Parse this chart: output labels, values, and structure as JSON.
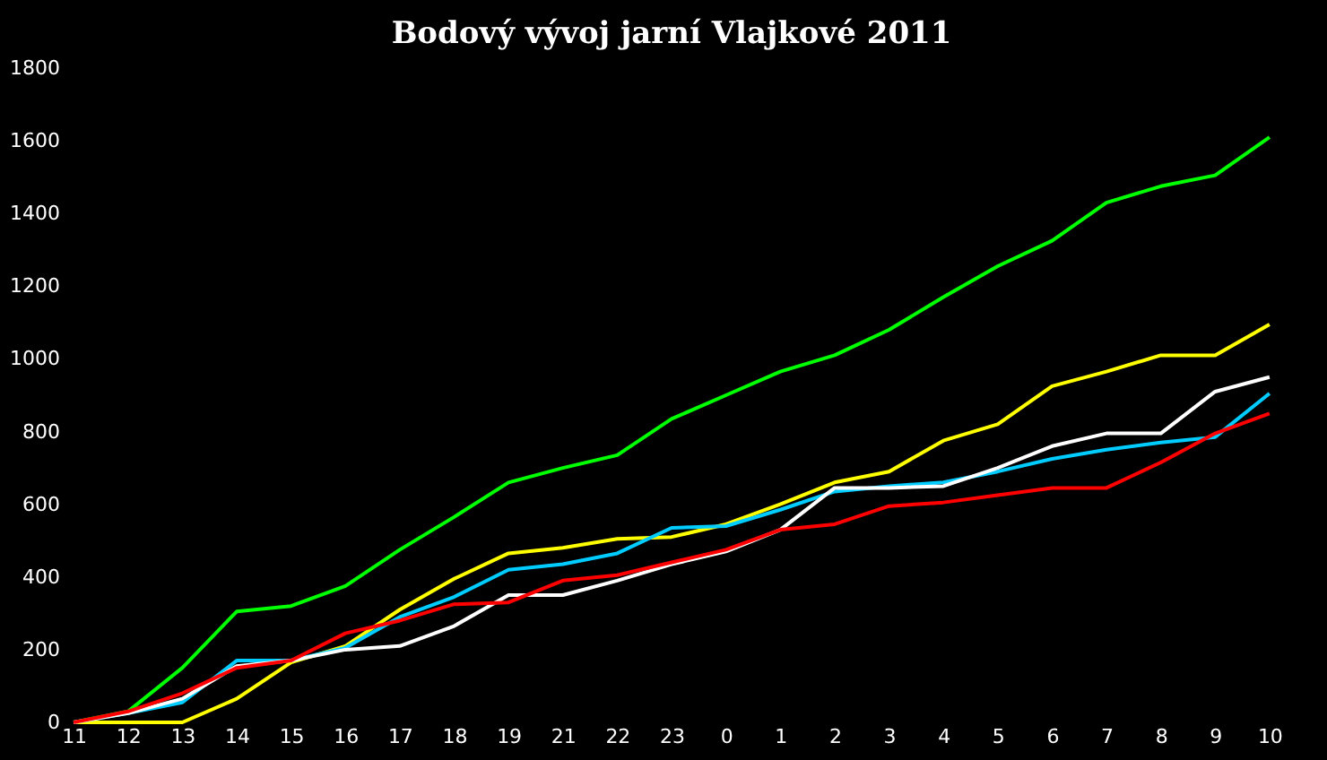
{
  "chart_data": {
    "type": "line",
    "title": "Bodový vývoj jarní Vlajkové 2011",
    "categories": [
      "11",
      "12",
      "13",
      "14",
      "15",
      "16",
      "17",
      "18",
      "19",
      "21",
      "22",
      "23",
      "0",
      "1",
      "2",
      "3",
      "4",
      "5",
      "6",
      "7",
      "8",
      "9",
      "10"
    ],
    "series": [
      {
        "color": "#00ff00",
        "values": [
          0,
          30,
          150,
          305,
          320,
          375,
          475,
          565,
          660,
          700,
          735,
          835,
          900,
          965,
          1010,
          1080,
          1170,
          1255,
          1325,
          1430,
          1475,
          1505,
          1610
        ]
      },
      {
        "color": "#ffff00",
        "values": [
          0,
          0,
          0,
          65,
          165,
          210,
          310,
          395,
          465,
          480,
          505,
          510,
          545,
          600,
          660,
          690,
          775,
          820,
          925,
          965,
          1010,
          1010,
          1095
        ]
      },
      {
        "color": "#00ccff",
        "values": [
          0,
          25,
          55,
          170,
          170,
          205,
          290,
          345,
          420,
          435,
          465,
          535,
          540,
          585,
          635,
          650,
          660,
          690,
          725,
          750,
          770,
          785,
          905
        ]
      },
      {
        "color": "#ffffff",
        "values": [
          0,
          25,
          65,
          155,
          170,
          200,
          210,
          265,
          350,
          350,
          390,
          435,
          470,
          530,
          645,
          645,
          650,
          700,
          760,
          795,
          795,
          910,
          950
        ]
      },
      {
        "color": "#ff0000",
        "values": [
          0,
          30,
          80,
          150,
          170,
          245,
          280,
          325,
          330,
          390,
          405,
          440,
          475,
          530,
          545,
          595,
          605,
          625,
          645,
          645,
          715,
          795,
          850
        ]
      }
    ],
    "ylim": [
      0,
      1800
    ],
    "yticks": [
      0,
      200,
      400,
      600,
      800,
      1000,
      1200,
      1400,
      1600,
      1800
    ]
  }
}
